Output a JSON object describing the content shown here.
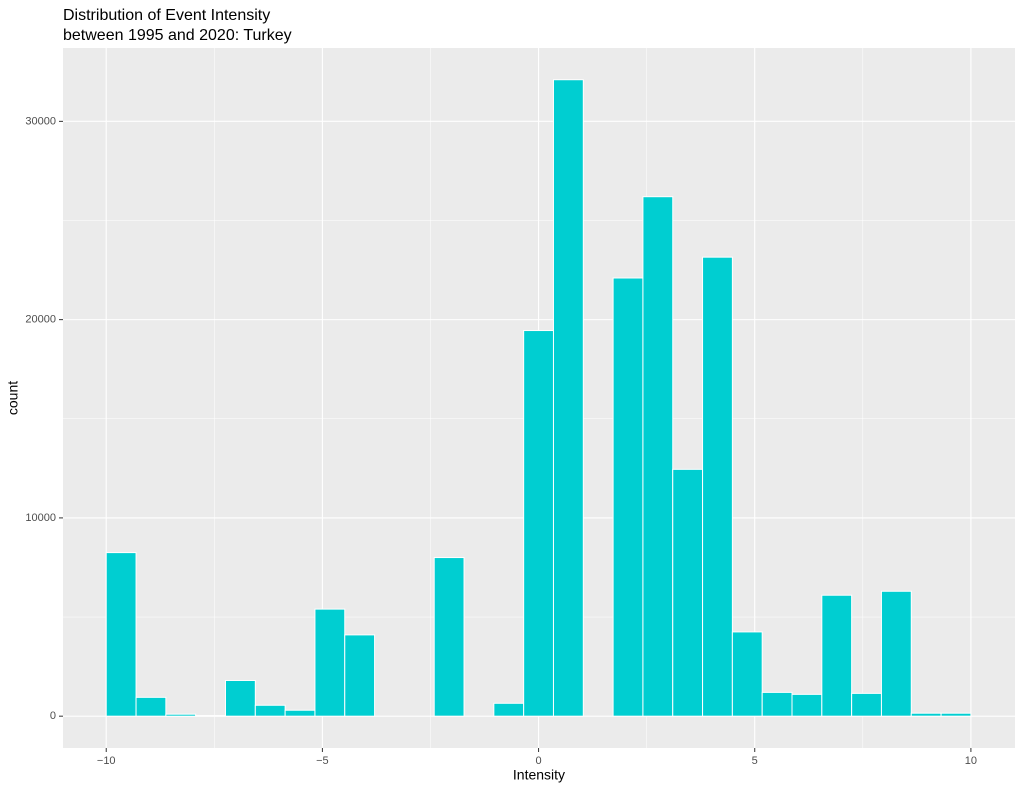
{
  "chart_data": {
    "type": "histogram",
    "title": "Distribution of Event Intensity",
    "subtitle": "between 1995 and 2020: Turkey",
    "x_label": "Intensity",
    "y_label": "count",
    "bins": [
      -10,
      -9.3103,
      -8.6207,
      -7.931,
      -7.2414,
      -6.5517,
      -5.8621,
      -5.1724,
      -4.4828,
      -3.7931,
      -3.1034,
      -2.4138,
      -1.7241,
      -1.0345,
      -0.3448,
      0.3448,
      1.0345,
      1.7241,
      2.4138,
      3.1034,
      3.7931,
      4.4828,
      5.1724,
      5.8621,
      6.5517,
      7.2414,
      7.931,
      8.6207,
      9.3103,
      10
    ],
    "values": [
      8250,
      950,
      100,
      30,
      1800,
      550,
      300,
      5400,
      4100,
      0,
      0,
      8000,
      0,
      650,
      19450,
      32100,
      0,
      22100,
      26200,
      12450,
      23150,
      4250,
      1200,
      1100,
      6100,
      1150,
      6300,
      150,
      150
    ],
    "color": "#00ced1",
    "xlim": [
      -11,
      11.02
    ],
    "xticks": [
      {
        "value": -10,
        "label": "−10"
      },
      {
        "value": -5,
        "label": "−5"
      },
      0,
      5,
      10
    ],
    "ylim": [
      -1605,
      33700
    ],
    "yticks": [
      0,
      10000,
      20000,
      30000
    ],
    "grid": true,
    "minor_grid": true
  }
}
